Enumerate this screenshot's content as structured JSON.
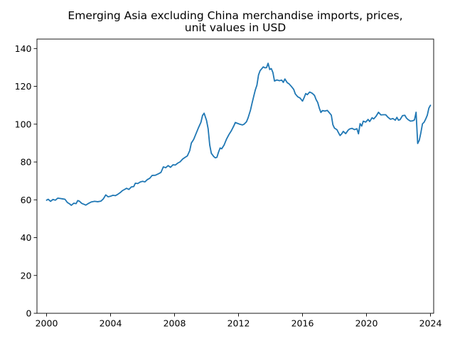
{
  "chart_data": {
    "type": "line",
    "title_lines": [
      "Emerging Asia excluding China merchandise imports, prices,",
      "unit values in USD"
    ],
    "xlabel": "",
    "ylabel": "",
    "xlim": [
      1999.4,
      2024.2
    ],
    "ylim": [
      0,
      145
    ],
    "x_ticks": [
      2000,
      2004,
      2008,
      2012,
      2016,
      2020,
      2024
    ],
    "y_ticks": [
      0,
      20,
      40,
      60,
      80,
      100,
      120,
      140
    ],
    "grid": false,
    "legend": "none",
    "series_color": "#1f77b4",
    "series": [
      {
        "points": [
          [
            2000.0,
            59.8
          ],
          [
            2000.1,
            60.3
          ],
          [
            2000.25,
            59.2
          ],
          [
            2000.4,
            60.2
          ],
          [
            2000.55,
            59.8
          ],
          [
            2000.7,
            60.9
          ],
          [
            2000.85,
            60.7
          ],
          [
            2001.0,
            60.5
          ],
          [
            2001.15,
            60.3
          ],
          [
            2001.3,
            58.6
          ],
          [
            2001.45,
            57.8
          ],
          [
            2001.55,
            57.1
          ],
          [
            2001.7,
            58.2
          ],
          [
            2001.85,
            58.0
          ],
          [
            2001.95,
            59.6
          ],
          [
            2002.05,
            59.3
          ],
          [
            2002.2,
            58.1
          ],
          [
            2002.35,
            57.6
          ],
          [
            2002.45,
            57.2
          ],
          [
            2002.6,
            58.0
          ],
          [
            2002.8,
            58.9
          ],
          [
            2003.0,
            59.2
          ],
          [
            2003.2,
            59.0
          ],
          [
            2003.4,
            59.3
          ],
          [
            2003.55,
            60.5
          ],
          [
            2003.7,
            62.6
          ],
          [
            2003.85,
            61.6
          ],
          [
            2004.0,
            61.9
          ],
          [
            2004.15,
            62.4
          ],
          [
            2004.3,
            62.2
          ],
          [
            2004.45,
            62.9
          ],
          [
            2004.6,
            63.8
          ],
          [
            2004.75,
            64.9
          ],
          [
            2004.9,
            65.6
          ],
          [
            2005.0,
            66.1
          ],
          [
            2005.15,
            65.5
          ],
          [
            2005.3,
            66.8
          ],
          [
            2005.45,
            67.0
          ],
          [
            2005.55,
            68.8
          ],
          [
            2005.7,
            68.6
          ],
          [
            2005.85,
            69.4
          ],
          [
            2006.0,
            69.8
          ],
          [
            2006.15,
            69.5
          ],
          [
            2006.3,
            70.7
          ],
          [
            2006.45,
            71.4
          ],
          [
            2006.6,
            72.9
          ],
          [
            2006.8,
            73.0
          ],
          [
            2007.0,
            73.8
          ],
          [
            2007.15,
            74.5
          ],
          [
            2007.3,
            77.4
          ],
          [
            2007.45,
            77.0
          ],
          [
            2007.6,
            78.1
          ],
          [
            2007.75,
            77.2
          ],
          [
            2007.9,
            78.5
          ],
          [
            2008.05,
            78.4
          ],
          [
            2008.2,
            79.4
          ],
          [
            2008.35,
            80.1
          ],
          [
            2008.5,
            81.5
          ],
          [
            2008.65,
            82.4
          ],
          [
            2008.8,
            83.2
          ],
          [
            2008.95,
            86.0
          ],
          [
            2009.05,
            90.0
          ],
          [
            2009.2,
            92.0
          ],
          [
            2009.35,
            95.1
          ],
          [
            2009.5,
            98.2
          ],
          [
            2009.65,
            101.0
          ],
          [
            2009.75,
            104.6
          ],
          [
            2009.85,
            105.8
          ],
          [
            2010.0,
            102.0
          ],
          [
            2010.1,
            97.6
          ],
          [
            2010.2,
            89.0
          ],
          [
            2010.3,
            84.6
          ],
          [
            2010.45,
            82.9
          ],
          [
            2010.55,
            82.2
          ],
          [
            2010.65,
            82.5
          ],
          [
            2010.75,
            85.2
          ],
          [
            2010.85,
            87.4
          ],
          [
            2010.95,
            87.0
          ],
          [
            2011.1,
            89.0
          ],
          [
            2011.25,
            92.1
          ],
          [
            2011.4,
            94.5
          ],
          [
            2011.55,
            96.5
          ],
          [
            2011.7,
            99.0
          ],
          [
            2011.8,
            100.9
          ],
          [
            2011.95,
            100.4
          ],
          [
            2012.1,
            99.9
          ],
          [
            2012.25,
            99.6
          ],
          [
            2012.35,
            100.0
          ],
          [
            2012.5,
            101.3
          ],
          [
            2012.6,
            103.4
          ],
          [
            2012.75,
            107.5
          ],
          [
            2012.85,
            111.2
          ],
          [
            2012.95,
            114.7
          ],
          [
            2013.05,
            118.1
          ],
          [
            2013.15,
            120.6
          ],
          [
            2013.25,
            126.0
          ],
          [
            2013.35,
            128.3
          ],
          [
            2013.45,
            129.3
          ],
          [
            2013.55,
            130.3
          ],
          [
            2013.65,
            129.8
          ],
          [
            2013.75,
            129.9
          ],
          [
            2013.85,
            132.2
          ],
          [
            2013.95,
            128.9
          ],
          [
            2014.05,
            129.4
          ],
          [
            2014.15,
            127.3
          ],
          [
            2014.25,
            122.8
          ],
          [
            2014.4,
            123.4
          ],
          [
            2014.55,
            123.0
          ],
          [
            2014.7,
            123.3
          ],
          [
            2014.8,
            122.1
          ],
          [
            2014.9,
            123.9
          ],
          [
            2015.05,
            121.9
          ],
          [
            2015.15,
            121.4
          ],
          [
            2015.3,
            120.0
          ],
          [
            2015.45,
            118.4
          ],
          [
            2015.55,
            116.0
          ],
          [
            2015.7,
            114.5
          ],
          [
            2015.85,
            113.8
          ],
          [
            2016.0,
            112.2
          ],
          [
            2016.1,
            114.0
          ],
          [
            2016.2,
            116.2
          ],
          [
            2016.3,
            115.6
          ],
          [
            2016.45,
            117.0
          ],
          [
            2016.6,
            116.4
          ],
          [
            2016.75,
            115.2
          ],
          [
            2016.85,
            113.0
          ],
          [
            2016.95,
            111.5
          ],
          [
            2017.05,
            108.5
          ],
          [
            2017.15,
            106.2
          ],
          [
            2017.25,
            107.2
          ],
          [
            2017.4,
            106.9
          ],
          [
            2017.55,
            107.3
          ],
          [
            2017.7,
            105.8
          ],
          [
            2017.8,
            104.8
          ],
          [
            2017.9,
            99.7
          ],
          [
            2018.0,
            97.9
          ],
          [
            2018.15,
            97.1
          ],
          [
            2018.25,
            95.5
          ],
          [
            2018.35,
            94.0
          ],
          [
            2018.45,
            94.9
          ],
          [
            2018.55,
            96.2
          ],
          [
            2018.7,
            95.0
          ],
          [
            2018.85,
            96.8
          ],
          [
            2018.95,
            97.5
          ],
          [
            2019.1,
            97.8
          ],
          [
            2019.25,
            97.1
          ],
          [
            2019.4,
            97.6
          ],
          [
            2019.5,
            94.9
          ],
          [
            2019.6,
            100.3
          ],
          [
            2019.7,
            99.0
          ],
          [
            2019.8,
            101.6
          ],
          [
            2019.95,
            101.1
          ],
          [
            2020.1,
            102.5
          ],
          [
            2020.2,
            101.4
          ],
          [
            2020.35,
            103.4
          ],
          [
            2020.45,
            102.8
          ],
          [
            2020.6,
            104.2
          ],
          [
            2020.75,
            106.3
          ],
          [
            2020.9,
            104.9
          ],
          [
            2021.05,
            105.0
          ],
          [
            2021.2,
            105.0
          ],
          [
            2021.35,
            103.6
          ],
          [
            2021.5,
            102.6
          ],
          [
            2021.65,
            103.0
          ],
          [
            2021.8,
            102.1
          ],
          [
            2021.9,
            103.6
          ],
          [
            2022.0,
            102.1
          ],
          [
            2022.1,
            102.4
          ],
          [
            2022.25,
            104.5
          ],
          [
            2022.4,
            104.7
          ],
          [
            2022.5,
            103.2
          ],
          [
            2022.6,
            102.4
          ],
          [
            2022.75,
            101.6
          ],
          [
            2022.9,
            101.8
          ],
          [
            2023.0,
            102.3
          ],
          [
            2023.1,
            106.3
          ],
          [
            2023.2,
            89.8
          ],
          [
            2023.3,
            91.5
          ],
          [
            2023.4,
            95.5
          ],
          [
            2023.5,
            100.2
          ],
          [
            2023.6,
            101.0
          ],
          [
            2023.7,
            102.7
          ],
          [
            2023.8,
            104.7
          ],
          [
            2023.9,
            108.5
          ],
          [
            2024.0,
            110.0
          ]
        ]
      }
    ]
  }
}
